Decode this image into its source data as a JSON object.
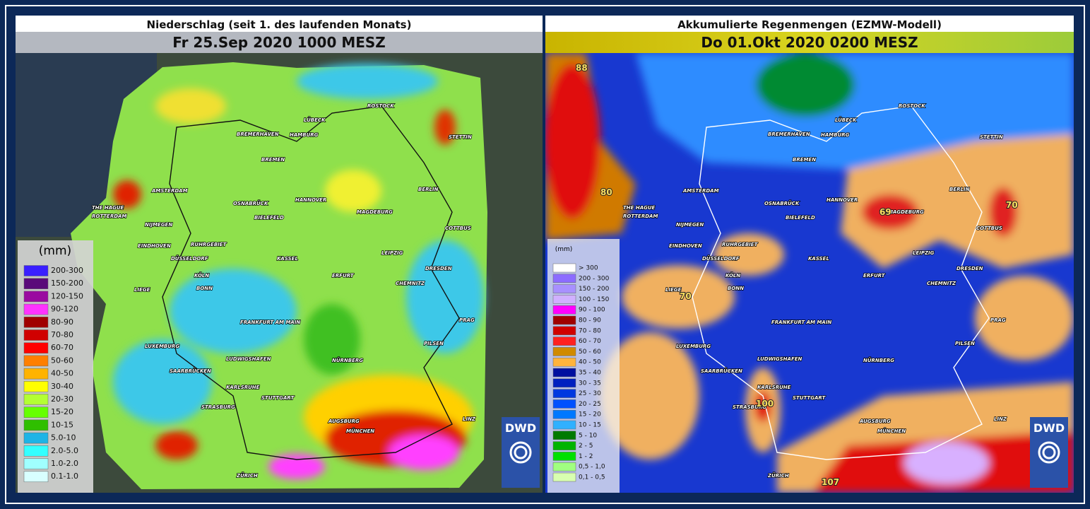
{
  "left_panel": {
    "title": "Niederschlag (seit 1. des laufenden Monats)",
    "subtitle": "Fr 25.Sep 2020 1000 MESZ",
    "logo": "DWD",
    "legend": {
      "unit": "(mm)",
      "items": [
        {
          "label": "200-300",
          "color": "#3a1fff"
        },
        {
          "label": "150-200",
          "color": "#5a0a7a"
        },
        {
          "label": "120-150",
          "color": "#9a0aa0"
        },
        {
          "label": "90-120",
          "color": "#ff33ff"
        },
        {
          "label": "80-90",
          "color": "#a00000"
        },
        {
          "label": "70-80",
          "color": "#d00000"
        },
        {
          "label": "60-70",
          "color": "#ff0000"
        },
        {
          "label": "50-60",
          "color": "#ff7f00"
        },
        {
          "label": "40-50",
          "color": "#ffb300"
        },
        {
          "label": "30-40",
          "color": "#ffff00"
        },
        {
          "label": "20-30",
          "color": "#b3ff33"
        },
        {
          "label": "15-20",
          "color": "#66ff00"
        },
        {
          "label": "10-15",
          "color": "#2fbf00"
        },
        {
          "label": "5.0-10",
          "color": "#1eb4e6"
        },
        {
          "label": "2.0-5.0",
          "color": "#33ffff"
        },
        {
          "label": "1.0-2.0",
          "color": "#a0ffff"
        },
        {
          "label": "0.1-1.0",
          "color": "#d8ffff"
        }
      ]
    }
  },
  "right_panel": {
    "title": "Akkumulierte Regenmengen (EZMW-Modell)",
    "subtitle": "Do 01.Okt 2020 0200 MESZ",
    "logo": "DWD",
    "legend": {
      "unit": "(mm)",
      "items": [
        {
          "label": "> 300",
          "color": "#ffffff"
        },
        {
          "label": "200 - 300",
          "color": "#8c6cff"
        },
        {
          "label": "150 - 200",
          "color": "#a890ff"
        },
        {
          "label": "100 - 150",
          "color": "#d0b0ff"
        },
        {
          "label": "90 - 100",
          "color": "#ff00ff"
        },
        {
          "label": "80 - 90",
          "color": "#a00000"
        },
        {
          "label": "70 - 80",
          "color": "#d00000"
        },
        {
          "label": "60 - 70",
          "color": "#ff2020"
        },
        {
          "label": "50 - 60",
          "color": "#d08a00"
        },
        {
          "label": "40 - 50",
          "color": "#ffb43c"
        },
        {
          "label": "35 - 40",
          "color": "#0010a0"
        },
        {
          "label": "30 - 35",
          "color": "#0020c0"
        },
        {
          "label": "25 - 30",
          "color": "#0038e0"
        },
        {
          "label": "20 - 25",
          "color": "#0050ff"
        },
        {
          "label": "15 - 20",
          "color": "#0078ff"
        },
        {
          "label": "10 - 15",
          "color": "#30b0ff"
        },
        {
          "label": "5 - 10",
          "color": "#007a00"
        },
        {
          "label": "2 - 5",
          "color": "#00b400"
        },
        {
          "label": "1 - 2",
          "color": "#00e000"
        },
        {
          "label": "0,5 - 1,0",
          "color": "#a0ff80"
        },
        {
          "label": "0,1 - 0,5",
          "color": "#d8ffb0"
        }
      ]
    },
    "map_values": [
      88,
      80,
      69,
      70,
      70,
      100,
      107
    ]
  },
  "map_cities": [
    "ROSTOCK",
    "BREMERHAVEN",
    "HAMBURG",
    "BREMEN",
    "LÜBECK",
    "BERLIN",
    "HANNOVER",
    "OSNABRÜCK",
    "BIELEFELD",
    "MAGDEBURG",
    "AMSTERDAM",
    "THE HAGUE",
    "ROTTERDAM",
    "NIJMEGEN",
    "EINDHOVEN",
    "RUHRGEBIET",
    "DÜSSELDORF",
    "KÖLN",
    "BONN",
    "KASSEL",
    "ERFURT",
    "LEIPZIG",
    "DRESDEN",
    "CHEMNITZ",
    "COTTBUS",
    "STETTIN",
    "FRANKFURT AM MAIN",
    "LUXEMBURG",
    "SAARBRÜCKEN",
    "LUDWIGSHAFEN",
    "NÜRNBERG",
    "KARLSRUHE",
    "STUTTGART",
    "STRASBURG",
    "AUGSBURG",
    "MÜNCHEN",
    "ZÜRICH",
    "PRAG",
    "PILSEN",
    "LINZ",
    "LIEGE"
  ]
}
